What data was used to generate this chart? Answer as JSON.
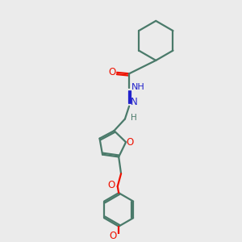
{
  "bg_color": "#ebebeb",
  "bond_color": "#4a7a6a",
  "o_color": "#ee1100",
  "n_color": "#2222cc",
  "line_width": 1.6,
  "figsize": [
    3.0,
    3.0
  ],
  "dpi": 100,
  "xlim": [
    0,
    10
  ],
  "ylim": [
    0,
    10
  ]
}
